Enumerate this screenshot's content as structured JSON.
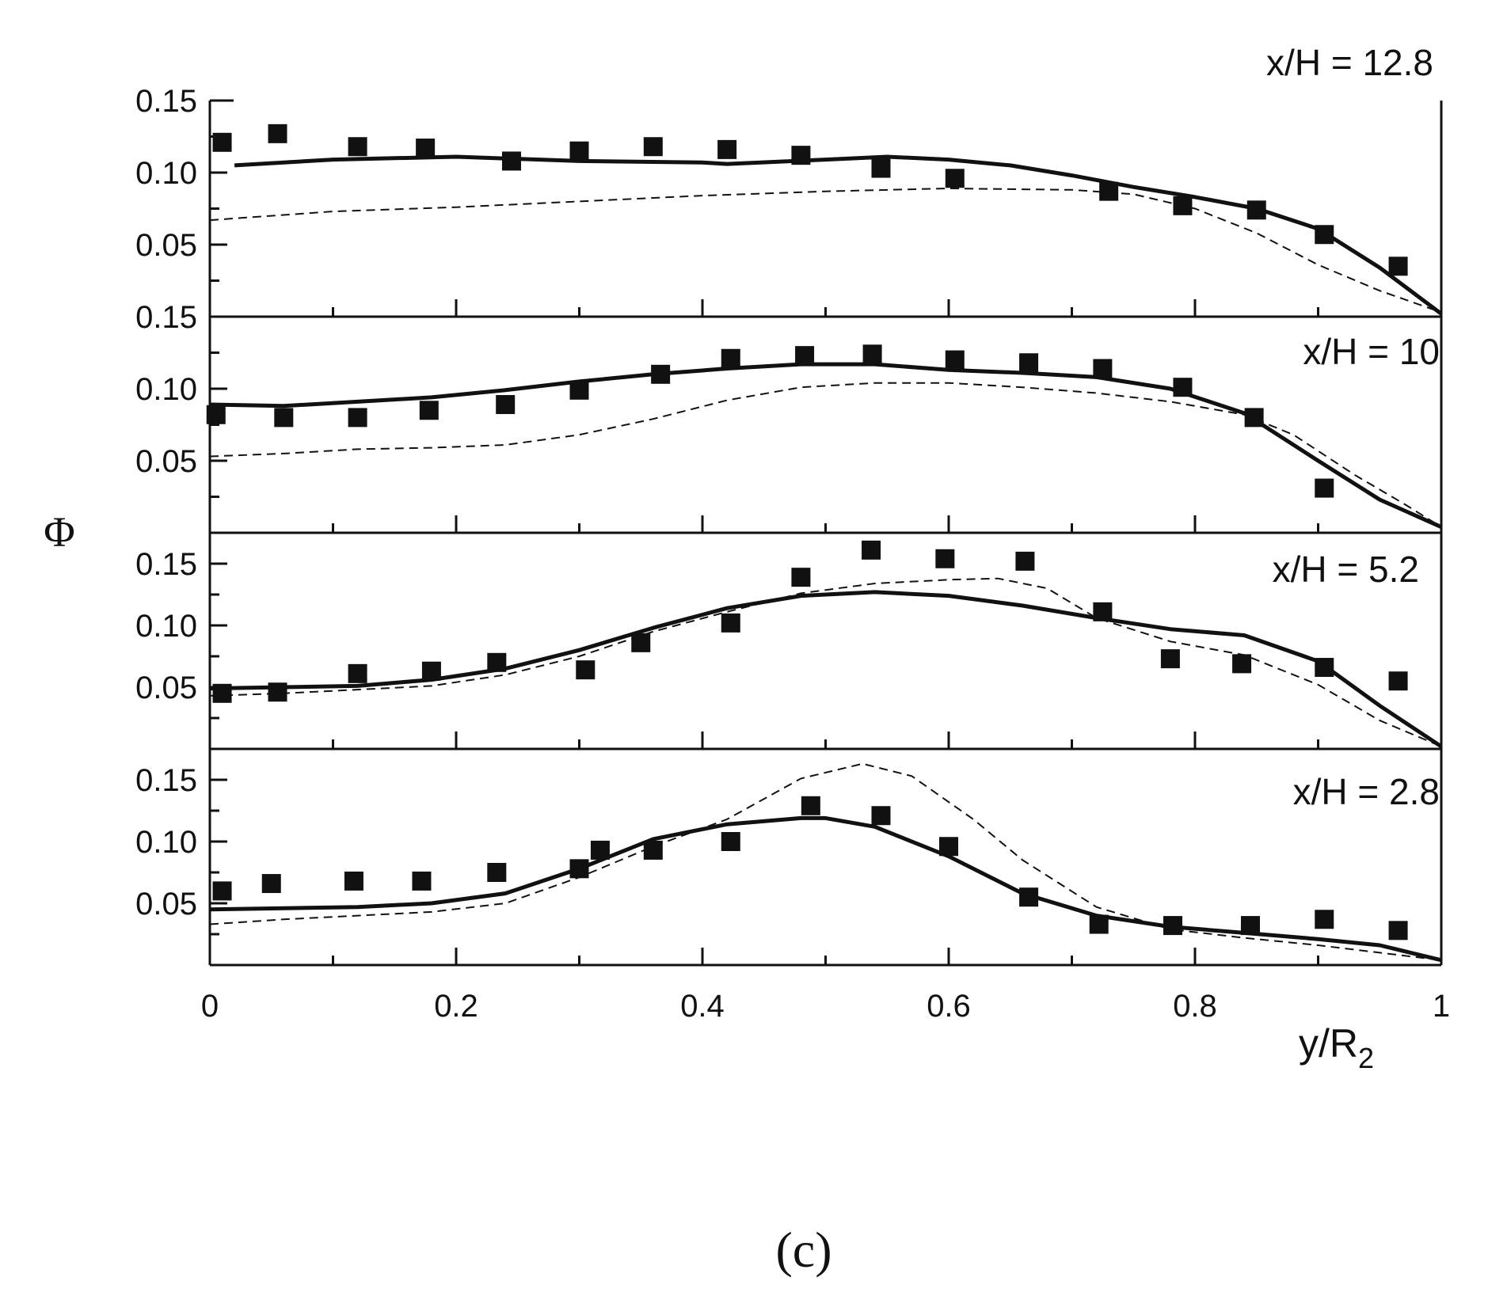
{
  "chart_data": {
    "type": "scatter",
    "figure_label": "(c)",
    "xlabel": "y/R",
    "xlabel_sub": "2",
    "ylabel": "Φ",
    "xlim": [
      0,
      1
    ],
    "x_ticks": [
      "0",
      "0.2",
      "0.4",
      "0.6",
      "0.8",
      "1"
    ],
    "series_styles": {
      "measured": "filled square markers",
      "model_a": "solid thick line",
      "model_b": "dashed line"
    },
    "panels": [
      {
        "label": "x/H = 12.8",
        "ylim": [
          0,
          0.15
        ],
        "y_ticks": [
          0.05,
          0.1,
          0.15
        ],
        "y_tick_labels": [
          "0.05",
          "0.10",
          "0.15"
        ],
        "bottom_label": "0.15",
        "measured": {
          "x": [
            0.01,
            0.055,
            0.12,
            0.175,
            0.245,
            0.3,
            0.36,
            0.42,
            0.48,
            0.545,
            0.605,
            0.73,
            0.79,
            0.85,
            0.905,
            0.965
          ],
          "y": [
            0.121,
            0.127,
            0.118,
            0.117,
            0.108,
            0.115,
            0.118,
            0.116,
            0.112,
            0.103,
            0.096,
            0.087,
            0.077,
            0.074,
            0.057,
            0.035
          ]
        },
        "model_a": {
          "x": [
            0.02,
            0.1,
            0.2,
            0.3,
            0.4,
            0.42,
            0.5,
            0.55,
            0.6,
            0.65,
            0.7,
            0.75,
            0.8,
            0.85,
            0.9,
            0.95,
            1.0
          ],
          "y": [
            0.105,
            0.109,
            0.111,
            0.108,
            0.107,
            0.106,
            0.109,
            0.111,
            0.109,
            0.105,
            0.098,
            0.09,
            0.083,
            0.075,
            0.061,
            0.034,
            0.002
          ]
        },
        "model_b": {
          "x": [
            0.0,
            0.1,
            0.2,
            0.3,
            0.4,
            0.5,
            0.6,
            0.7,
            0.75,
            0.8,
            0.85,
            0.9,
            0.95,
            1.0
          ],
          "y": [
            0.067,
            0.073,
            0.076,
            0.08,
            0.084,
            0.087,
            0.089,
            0.088,
            0.085,
            0.075,
            0.058,
            0.036,
            0.018,
            0.003
          ]
        }
      },
      {
        "label": "x/H = 10",
        "ylim": [
          0,
          0.15
        ],
        "y_ticks": [
          0.05,
          0.1
        ],
        "y_tick_labels": [
          "0.05",
          "0.10"
        ],
        "measured": {
          "x": [
            0.005,
            0.06,
            0.12,
            0.178,
            0.24,
            0.3,
            0.366,
            0.423,
            0.483,
            0.538,
            0.605,
            0.665,
            0.725,
            0.79,
            0.848,
            0.905
          ],
          "y": [
            0.082,
            0.08,
            0.08,
            0.085,
            0.089,
            0.099,
            0.11,
            0.121,
            0.123,
            0.124,
            0.12,
            0.118,
            0.114,
            0.101,
            0.08,
            0.031
          ]
        },
        "model_a": {
          "x": [
            0.0,
            0.06,
            0.12,
            0.18,
            0.24,
            0.3,
            0.36,
            0.42,
            0.48,
            0.54,
            0.6,
            0.66,
            0.72,
            0.78,
            0.84,
            0.9,
            0.95,
            1.0
          ],
          "y": [
            0.089,
            0.088,
            0.091,
            0.094,
            0.099,
            0.105,
            0.11,
            0.114,
            0.117,
            0.117,
            0.113,
            0.111,
            0.108,
            0.1,
            0.083,
            0.05,
            0.023,
            0.004
          ]
        },
        "model_b": {
          "x": [
            0.0,
            0.06,
            0.12,
            0.18,
            0.24,
            0.3,
            0.36,
            0.42,
            0.48,
            0.54,
            0.6,
            0.66,
            0.72,
            0.78,
            0.84,
            0.88,
            0.93,
            0.97,
            1.0
          ],
          "y": [
            0.053,
            0.055,
            0.058,
            0.059,
            0.061,
            0.068,
            0.079,
            0.092,
            0.101,
            0.104,
            0.104,
            0.101,
            0.097,
            0.091,
            0.082,
            0.068,
            0.04,
            0.02,
            0.004
          ]
        }
      },
      {
        "label": "x/H = 5.2",
        "ylim": [
          0,
          0.175
        ],
        "y_ticks": [
          0.05,
          0.1,
          0.15
        ],
        "y_tick_labels": [
          "0.05",
          "0.10",
          "0.15"
        ],
        "measured": {
          "x": [
            0.01,
            0.055,
            0.12,
            0.18,
            0.233,
            0.305,
            0.35,
            0.423,
            0.48,
            0.537,
            0.597,
            0.662,
            0.725,
            0.78,
            0.838,
            0.905,
            0.965
          ],
          "y": [
            0.045,
            0.046,
            0.061,
            0.063,
            0.07,
            0.064,
            0.086,
            0.102,
            0.139,
            0.161,
            0.154,
            0.152,
            0.111,
            0.073,
            0.069,
            0.066,
            0.055
          ]
        },
        "model_a": {
          "x": [
            0.0,
            0.06,
            0.12,
            0.18,
            0.24,
            0.3,
            0.36,
            0.42,
            0.48,
            0.54,
            0.6,
            0.66,
            0.72,
            0.78,
            0.84,
            0.9,
            0.95,
            1.0
          ],
          "y": [
            0.049,
            0.05,
            0.051,
            0.056,
            0.065,
            0.08,
            0.098,
            0.114,
            0.124,
            0.127,
            0.124,
            0.116,
            0.106,
            0.097,
            0.092,
            0.071,
            0.035,
            0.002
          ]
        },
        "model_b": {
          "x": [
            0.0,
            0.06,
            0.12,
            0.18,
            0.24,
            0.3,
            0.36,
            0.42,
            0.48,
            0.54,
            0.6,
            0.64,
            0.68,
            0.72,
            0.78,
            0.84,
            0.9,
            0.95,
            1.0
          ],
          "y": [
            0.043,
            0.045,
            0.048,
            0.051,
            0.06,
            0.075,
            0.095,
            0.111,
            0.126,
            0.134,
            0.137,
            0.138,
            0.13,
            0.106,
            0.087,
            0.076,
            0.052,
            0.023,
            0.002
          ]
        }
      },
      {
        "label": "x/H = 2.8",
        "ylim": [
          0,
          0.175
        ],
        "y_ticks": [
          0.05,
          0.1,
          0.15
        ],
        "y_tick_labels": [
          "0.05",
          "0.10",
          "0.15"
        ],
        "measured": {
          "x": [
            0.01,
            0.05,
            0.117,
            0.172,
            0.233,
            0.3,
            0.317,
            0.36,
            0.423,
            0.488,
            0.545,
            0.6,
            0.665,
            0.722,
            0.782,
            0.845,
            0.905,
            0.965
          ],
          "y": [
            0.06,
            0.066,
            0.068,
            0.068,
            0.075,
            0.078,
            0.093,
            0.093,
            0.1,
            0.129,
            0.121,
            0.096,
            0.055,
            0.033,
            0.032,
            0.032,
            0.037,
            0.028
          ]
        },
        "model_a": {
          "x": [
            0.0,
            0.06,
            0.12,
            0.18,
            0.24,
            0.3,
            0.36,
            0.42,
            0.48,
            0.5,
            0.54,
            0.6,
            0.66,
            0.72,
            0.78,
            0.84,
            0.9,
            0.95,
            1.0
          ],
          "y": [
            0.045,
            0.046,
            0.047,
            0.05,
            0.058,
            0.078,
            0.102,
            0.114,
            0.119,
            0.119,
            0.112,
            0.088,
            0.058,
            0.04,
            0.031,
            0.026,
            0.021,
            0.016,
            0.004
          ]
        },
        "model_b": {
          "x": [
            0.0,
            0.06,
            0.12,
            0.18,
            0.24,
            0.3,
            0.36,
            0.42,
            0.48,
            0.53,
            0.57,
            0.62,
            0.66,
            0.72,
            0.78,
            0.84,
            0.9,
            0.95,
            1.0
          ],
          "y": [
            0.033,
            0.037,
            0.04,
            0.043,
            0.05,
            0.071,
            0.096,
            0.118,
            0.151,
            0.163,
            0.153,
            0.118,
            0.085,
            0.047,
            0.029,
            0.022,
            0.016,
            0.01,
            0.004
          ]
        }
      }
    ]
  }
}
